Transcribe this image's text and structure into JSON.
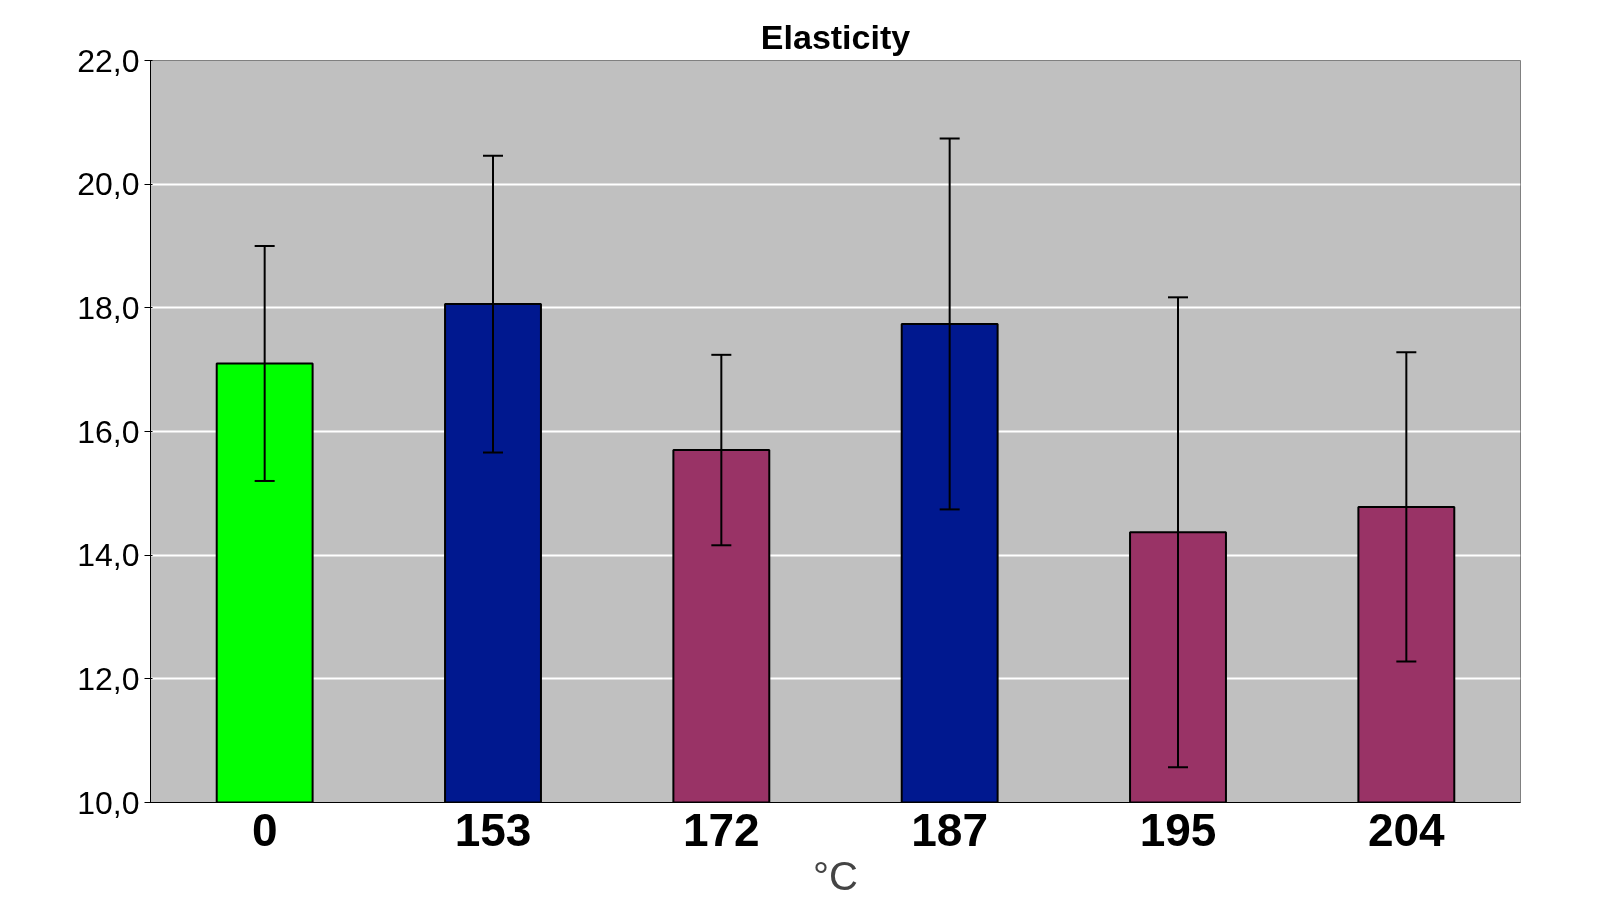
{
  "chart_data": {
    "type": "bar",
    "title": "Elasticity",
    "xlabel": "°C",
    "categories": [
      "0",
      "153",
      "172",
      "187",
      "195",
      "204"
    ],
    "values": [
      17.1,
      18.06,
      15.7,
      17.74,
      14.37,
      14.78
    ],
    "errors": [
      1.9,
      2.4,
      1.54,
      3.0,
      3.8,
      2.5
    ],
    "colors": [
      "#00ff00",
      "#00188f",
      "#993366",
      "#00188f",
      "#993366",
      "#993366"
    ],
    "ylim": [
      10,
      22
    ],
    "yticks": [
      {
        "value": 10,
        "label": "10,0"
      },
      {
        "value": 12,
        "label": "12,0"
      },
      {
        "value": 14,
        "label": "14,0"
      },
      {
        "value": 16,
        "label": "16,0"
      },
      {
        "value": 18,
        "label": "18,0"
      },
      {
        "value": 20,
        "label": "20,0"
      },
      {
        "value": 22,
        "label": "22,0"
      }
    ],
    "grid": "y"
  }
}
